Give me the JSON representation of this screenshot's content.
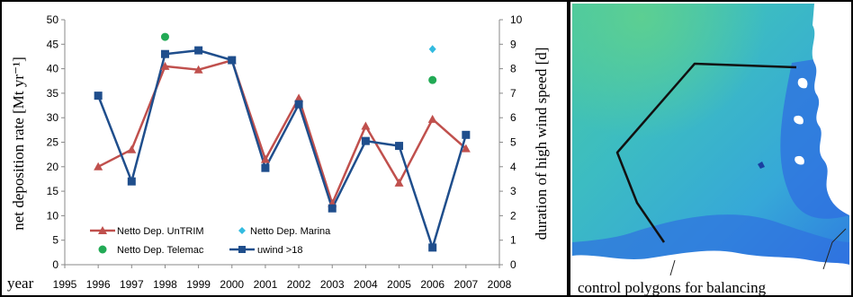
{
  "chart_data": {
    "type": "line",
    "title": "",
    "xlabel": "year",
    "ylabel": "net deposition rate [Mt yr⁻¹]",
    "y2label": "duration of high wind speed [d]",
    "xlim": [
      1995,
      2008
    ],
    "ylim": [
      0,
      50
    ],
    "y2lim": [
      0,
      10
    ],
    "x_ticks": [
      "1995",
      "1996",
      "1997",
      "1998",
      "1999",
      "2000",
      "2001",
      "2002",
      "2003",
      "2004",
      "2005",
      "2006",
      "2007",
      "2008"
    ],
    "y_ticks": [
      "0",
      "5",
      "10",
      "15",
      "20",
      "25",
      "30",
      "35",
      "40",
      "45",
      "50"
    ],
    "y2_ticks": [
      "0",
      "1",
      "2",
      "3",
      "4",
      "5",
      "6",
      "7",
      "8",
      "9",
      "10"
    ],
    "grid": false,
    "legend_position": "bottom-left",
    "series": [
      {
        "name": "Netto Dep. UnTRIM",
        "axis": "left",
        "marker": "triangle",
        "color": "#c0504d",
        "x": [
          1996,
          1997,
          1998,
          1999,
          2000,
          2001,
          2002,
          2003,
          2004,
          2005,
          2006,
          2007
        ],
        "y": [
          20,
          23.5,
          40.5,
          39.8,
          41.7,
          21.5,
          34,
          12.5,
          28.3,
          16.7,
          29.7,
          23.7
        ]
      },
      {
        "name": "Netto Dep. Marina",
        "axis": "left",
        "marker": "diamond",
        "color": "#33bbe0",
        "x": [
          2006
        ],
        "y": [
          44
        ]
      },
      {
        "name": "Netto Dep. Telemac",
        "axis": "left",
        "marker": "circle",
        "color": "#22aa55",
        "x": [
          1998,
          2006
        ],
        "y": [
          46.5,
          37.7
        ]
      },
      {
        "name": "uwind >18",
        "axis": "right",
        "marker": "square",
        "color": "#1f4e8c",
        "x": [
          1996,
          1997,
          1998,
          1999,
          2000,
          2001,
          2002,
          2003,
          2004,
          2005,
          2006,
          2007
        ],
        "y": [
          6.9,
          3.4,
          8.6,
          8.75,
          8.35,
          3.95,
          6.55,
          2.3,
          5.05,
          4.85,
          0.7,
          5.3
        ]
      }
    ]
  },
  "map": {
    "caption": "control polygons for balancing",
    "colors": {
      "deep": "#2f6fe0",
      "mid": "#35a2e0",
      "shallow": "#3fc0c0",
      "shoal": "#5cc9a0",
      "land": "#ffffff",
      "polygon": "#111111"
    }
  },
  "colors": {
    "frame": "#000000",
    "background": "#ffffff"
  }
}
